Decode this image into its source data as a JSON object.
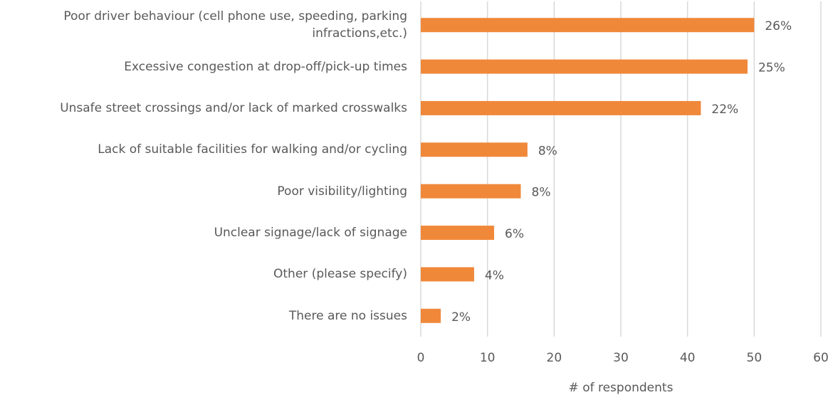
{
  "chart_data": {
    "type": "barh",
    "categories": [
      "Poor driver behaviour (cell phone use, speeding, parking infractions,etc.)",
      "Excessive congestion at drop-off/pick-up times",
      "Unsafe street crossings and/or lack of marked crosswalks",
      "Lack of suitable facilities for walking and/or cycling",
      "Poor visibility/lighting",
      "Unclear signage/lack of signage",
      "Other (please specify)",
      "There are no issues"
    ],
    "values": [
      50,
      49,
      42,
      16,
      15,
      11,
      8,
      3
    ],
    "data_labels": [
      "26%",
      "25%",
      "22%",
      "8%",
      "8%",
      "6%",
      "4%",
      "2%"
    ],
    "color": "#f0883a",
    "xlabel": "# of respondents",
    "xlim": [
      0,
      60
    ],
    "xticks": [
      0,
      10,
      20,
      30,
      40,
      50,
      60
    ],
    "grid": true
  }
}
